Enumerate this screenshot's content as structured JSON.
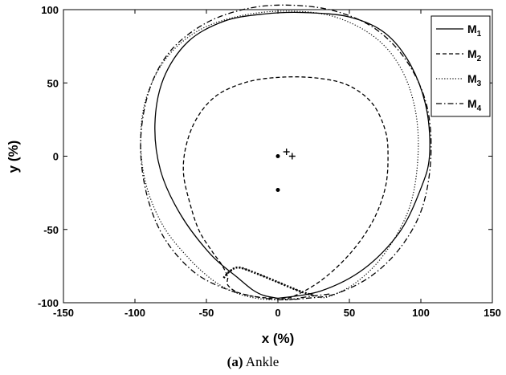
{
  "chart_data": {
    "type": "line",
    "title": "",
    "xlabel": "x (%)",
    "ylabel": "y (%)",
    "xlim": [
      -150,
      150
    ],
    "ylim": [
      -100,
      100
    ],
    "xticks": [
      -150,
      -100,
      -50,
      0,
      50,
      100,
      150
    ],
    "yticks": [
      -100,
      -50,
      0,
      50,
      100
    ],
    "grid": false,
    "legend_position": "top-right",
    "series": [
      {
        "name": "M1",
        "label_main": "M",
        "label_sub": "1",
        "style": "solid",
        "points": [
          [
            0,
            -97
          ],
          [
            30,
            -92
          ],
          [
            60,
            -77
          ],
          [
            85,
            -52
          ],
          [
            100,
            -22
          ],
          [
            106,
            0
          ],
          [
            104,
            32
          ],
          [
            93,
            62
          ],
          [
            75,
            84
          ],
          [
            50,
            95
          ],
          [
            18,
            98
          ],
          [
            -10,
            97
          ],
          [
            -38,
            92
          ],
          [
            -63,
            78
          ],
          [
            -80,
            53
          ],
          [
            -86,
            22
          ],
          [
            -82,
            -10
          ],
          [
            -68,
            -40
          ],
          [
            -47,
            -67
          ],
          [
            -28,
            -83
          ],
          [
            -18,
            -91
          ],
          [
            -10,
            -95
          ],
          [
            0,
            -97
          ]
        ]
      },
      {
        "name": "M2",
        "label_main": "M",
        "label_sub": "2",
        "style": "dashed",
        "points": [
          [
            -35,
            -83
          ],
          [
            -35,
            -88
          ],
          [
            -28,
            -93
          ],
          [
            -15,
            -96
          ],
          [
            0,
            -97
          ],
          [
            10,
            -96
          ],
          [
            30,
            -85
          ],
          [
            50,
            -67
          ],
          [
            66,
            -45
          ],
          [
            75,
            -22
          ],
          [
            77,
            0
          ],
          [
            75,
            18
          ],
          [
            66,
            36
          ],
          [
            50,
            48
          ],
          [
            30,
            53
          ],
          [
            5,
            54
          ],
          [
            -20,
            51
          ],
          [
            -42,
            42
          ],
          [
            -56,
            27
          ],
          [
            -64,
            8
          ],
          [
            -66,
            -12
          ],
          [
            -61,
            -34
          ],
          [
            -55,
            -51
          ],
          [
            -46,
            -65
          ],
          [
            -40,
            -73
          ],
          [
            -36,
            -80
          ],
          [
            -35,
            -83
          ]
        ]
      },
      {
        "name": "M3",
        "label_main": "M",
        "label_sub": "3",
        "style": "dotted",
        "points": [
          [
            -38,
            -83
          ],
          [
            -33,
            -78
          ],
          [
            -27,
            -76
          ],
          [
            -15,
            -80
          ],
          [
            0,
            -86
          ],
          [
            15,
            -92
          ],
          [
            25,
            -95
          ],
          [
            35,
            -96
          ],
          [
            55,
            -86
          ],
          [
            75,
            -66
          ],
          [
            92,
            -35
          ],
          [
            98,
            0
          ],
          [
            96,
            32
          ],
          [
            86,
            60
          ],
          [
            68,
            81
          ],
          [
            40,
            95
          ],
          [
            8,
            99
          ],
          [
            -25,
            96
          ],
          [
            -55,
            86
          ],
          [
            -78,
            67
          ],
          [
            -92,
            40
          ],
          [
            -96,
            10
          ],
          [
            -92,
            -20
          ],
          [
            -80,
            -48
          ],
          [
            -62,
            -70
          ],
          [
            -45,
            -85
          ],
          [
            -30,
            -93
          ],
          [
            -15,
            -97
          ],
          [
            0,
            -98
          ],
          [
            10,
            -97
          ]
        ]
      },
      {
        "name": "M4",
        "label_main": "M",
        "label_sub": "4",
        "style": "dashdot",
        "points": [
          [
            36,
            -94
          ],
          [
            20,
            -96
          ],
          [
            5,
            -98
          ],
          [
            -15,
            -96
          ],
          [
            -38,
            -90
          ],
          [
            -60,
            -78
          ],
          [
            -80,
            -55
          ],
          [
            -92,
            -25
          ],
          [
            -96,
            10
          ],
          [
            -90,
            45
          ],
          [
            -75,
            72
          ],
          [
            -50,
            91
          ],
          [
            -20,
            101
          ],
          [
            10,
            103
          ],
          [
            40,
            99
          ],
          [
            68,
            87
          ],
          [
            90,
            65
          ],
          [
            104,
            35
          ],
          [
            107,
            0
          ],
          [
            101,
            -35
          ],
          [
            86,
            -62
          ],
          [
            65,
            -82
          ],
          [
            40,
            -94
          ],
          [
            20,
            -97
          ],
          [
            5,
            -98
          ]
        ]
      }
    ],
    "markers": [
      {
        "symbol": "+",
        "x": 6,
        "y": 3
      },
      {
        "symbol": "+",
        "x": 10,
        "y": 0
      },
      {
        "symbol": "dot",
        "x": 0,
        "y": 0
      },
      {
        "symbol": "dot",
        "x": 0,
        "y": -23
      }
    ]
  },
  "caption": {
    "tag": "(a)",
    "text": "Ankle"
  }
}
